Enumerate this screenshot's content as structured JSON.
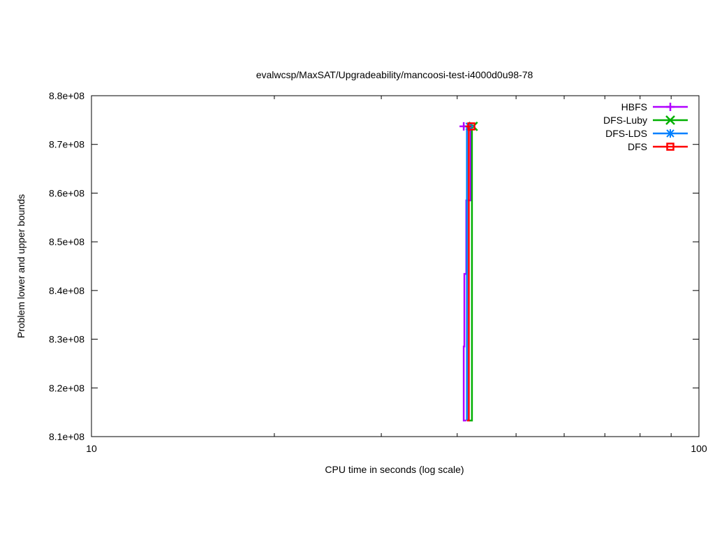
{
  "chart_data": {
    "type": "line",
    "title": "evalwcsp/MaxSAT/Upgradeability/mancoosi-test-i4000d0u98-78",
    "xlabel": "CPU time in seconds (log scale)",
    "ylabel": "Problem lower and upper bounds",
    "xscale": "log",
    "xlim": [
      10,
      100
    ],
    "ylim": [
      810000000,
      880000000
    ],
    "x_ticks": [
      {
        "v": 10,
        "label": "10"
      },
      {
        "v": 100,
        "label": "100"
      }
    ],
    "y_ticks": [
      {
        "v": 810000000,
        "label": "8.1e+08"
      },
      {
        "v": 820000000,
        "label": "8.2e+08"
      },
      {
        "v": 830000000,
        "label": "8.3e+08"
      },
      {
        "v": 840000000,
        "label": "8.4e+08"
      },
      {
        "v": 850000000,
        "label": "8.5e+08"
      },
      {
        "v": 860000000,
        "label": "8.6e+08"
      },
      {
        "v": 870000000,
        "label": "8.7e+08"
      },
      {
        "v": 880000000,
        "label": "8.8e+08"
      }
    ],
    "grid": false,
    "legend_position": "top-right",
    "series": [
      {
        "name": "HBFS",
        "color": "#b000ff",
        "marker": "plus",
        "x": [
          41.4,
          41.0,
          41.0,
          41.1,
          41.1,
          41.4,
          41.4,
          42.1,
          42.1,
          41.0
        ],
        "y": [
          813300000,
          813300000,
          828500000,
          828500000,
          843400000,
          843400000,
          858500000,
          858500000,
          873700000,
          873700000
        ]
      },
      {
        "name": "DFS-Luby",
        "color": "#00b000",
        "marker": "cross",
        "x": [
          41.9,
          42.3,
          42.3,
          42.5
        ],
        "y": [
          813300000,
          813300000,
          873700000,
          873700000
        ]
      },
      {
        "name": "DFS-LDS",
        "color": "#0080ff",
        "marker": "star",
        "x": [
          41.5,
          41.5,
          41.9
        ],
        "y": [
          813300000,
          873700000,
          873700000
        ]
      },
      {
        "name": "DFS",
        "color": "#ff0000",
        "marker": "square",
        "x": [
          41.5,
          41.8,
          41.8,
          41.3,
          42.2
        ],
        "y": [
          813300000,
          813300000,
          873700000,
          873700000,
          873700000
        ]
      }
    ]
  }
}
